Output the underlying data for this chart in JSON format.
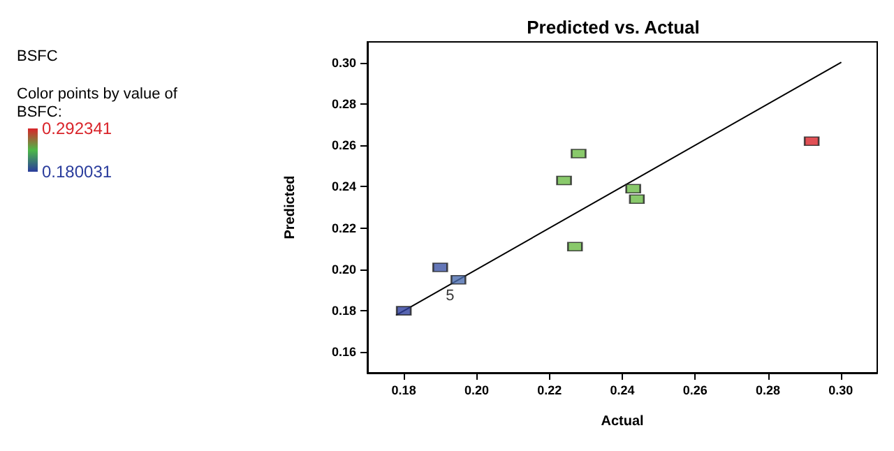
{
  "chart_data": {
    "type": "scatter",
    "title": "Predicted vs. Actual",
    "subtitle": "BSFC",
    "xlabel": "Actual",
    "ylabel": "Predicted",
    "clabel": "Color points by value of BSFC:",
    "clim": [
      0.180031,
      0.292341
    ],
    "cticks": [
      {
        "value": 0.180031,
        "label": "0.180031"
      },
      {
        "value": 0.292341,
        "label": "0.292341"
      }
    ],
    "xlim": [
      0.17,
      0.31
    ],
    "xticks": [
      {
        "value": 0.18,
        "label": "0.18"
      },
      {
        "value": 0.2,
        "label": "0.20"
      },
      {
        "value": 0.22,
        "label": "0.22"
      },
      {
        "value": 0.24,
        "label": "0.24"
      },
      {
        "value": 0.26,
        "label": "0.26"
      },
      {
        "value": 0.28,
        "label": "0.28"
      },
      {
        "value": 0.3,
        "label": "0.30"
      }
    ],
    "ylim": [
      0.15,
      0.31
    ],
    "yticks": [
      {
        "value": 0.16,
        "label": "0.16"
      },
      {
        "value": 0.18,
        "label": "0.18"
      },
      {
        "value": 0.2,
        "label": "0.20"
      },
      {
        "value": 0.22,
        "label": "0.22"
      },
      {
        "value": 0.24,
        "label": "0.24"
      },
      {
        "value": 0.26,
        "label": "0.26"
      },
      {
        "value": 0.28,
        "label": "0.28"
      },
      {
        "value": 0.3,
        "label": "0.30"
      }
    ],
    "grid": false,
    "marker": "square",
    "series": [
      {
        "x": [
          0.18,
          0.19,
          0.195,
          0.227,
          0.228,
          0.224,
          0.243,
          0.244,
          0.292
        ],
        "values": [
          0.18,
          0.201,
          0.195,
          0.211,
          0.256,
          0.243,
          0.239,
          0.234,
          0.262
        ],
        "colors": [
          "#2e3f9e",
          "#3d55a6",
          "#4a6cae",
          "#6cbb46",
          "#6cbb46",
          "#6cbb46",
          "#6cbb46",
          "#6cbb46",
          "#d9242a"
        ]
      },
      {
        "type": "line",
        "color": "#000000",
        "x": [
          0.178,
          0.3
        ],
        "values": [
          0.178,
          0.3
        ],
        "marker": "none",
        "line_style": "solid"
      }
    ],
    "annotations": [
      {
        "text": "5",
        "x": 0.195,
        "y": 0.195
      }
    ]
  }
}
